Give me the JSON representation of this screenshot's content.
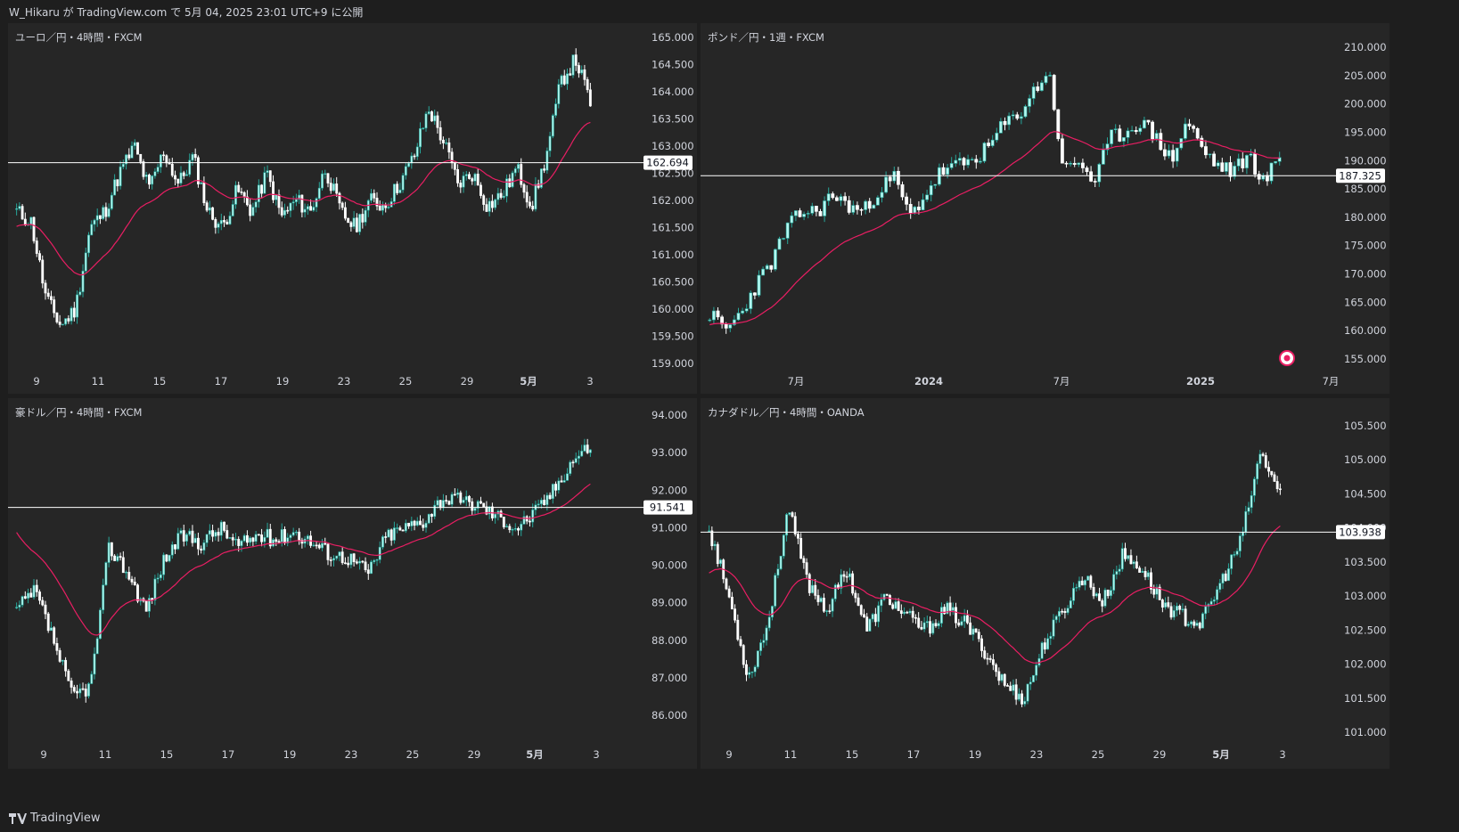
{
  "header": {
    "text": "W_Hikaru が TradingView.com で 5月 04, 2025 23:01 UTC+9 に公開"
  },
  "footer": {
    "brand": "TradingView",
    "logo_icon": "tradingview-logo-icon"
  },
  "colors": {
    "bg": "#1e1e1e",
    "panel": "#262626",
    "up": "#26a69a",
    "down": "#ffffff",
    "up_body": "#b2f7f0",
    "ma": "#e91e63",
    "line": "#ffffff"
  },
  "chart_data": [
    {
      "type": "candlestick",
      "title": "ユーロ／円・4時間・FXCM",
      "ylim": [
        158.75,
        165.25
      ],
      "y_ticks": [
        "165.000",
        "164.500",
        "164.000",
        "163.500",
        "163.000",
        "162.500",
        "162.000",
        "161.500",
        "161.000",
        "160.500",
        "160.000",
        "159.500",
        "159.000"
      ],
      "x_ticks": [
        {
          "t": "9",
          "b": false
        },
        {
          "t": "11",
          "b": false
        },
        {
          "t": "15",
          "b": false
        },
        {
          "t": "17",
          "b": false
        },
        {
          "t": "19",
          "b": false
        },
        {
          "t": "23",
          "b": false
        },
        {
          "t": "25",
          "b": false
        },
        {
          "t": "29",
          "b": false
        },
        {
          "t": "5月",
          "b": true
        },
        {
          "t": "3",
          "b": false
        }
      ],
      "hline": 162.694,
      "hline_label": "162.694",
      "anchors": [
        161.8,
        161.6,
        160.2,
        159.7,
        160.0,
        161.5,
        161.8,
        162.5,
        163.0,
        162.2,
        162.9,
        162.3,
        162.8,
        161.8,
        161.5,
        162.2,
        161.8,
        162.5,
        161.7,
        162.0,
        161.8,
        162.6,
        161.8,
        161.5,
        162.0,
        161.9,
        162.3,
        162.8,
        163.7,
        163.1,
        162.3,
        162.5,
        161.9,
        162.1,
        162.6,
        161.9,
        162.8,
        164.2,
        164.6,
        163.8
      ],
      "n": 200,
      "ma_start": 161.5,
      "seed": 11
    },
    {
      "type": "candlestick",
      "title": "ポンド／円・1週・FXCM",
      "ylim": [
        153.0,
        212.0
      ],
      "y_ticks": [
        "210.000",
        "205.000",
        "200.000",
        "195.000",
        "190.000",
        "185.000",
        "180.000",
        "175.000",
        "170.000",
        "165.000",
        "160.000",
        "155.000"
      ],
      "x_ticks": [
        {
          "t": "7月",
          "b": false
        },
        {
          "t": "2024",
          "b": true
        },
        {
          "t": "7月",
          "b": false
        },
        {
          "t": "2025",
          "b": true
        },
        {
          "t": "7月",
          "b": false
        }
      ],
      "hline": 187.325,
      "hline_label": "187.325",
      "anchors": [
        163,
        160,
        163,
        168,
        172,
        178,
        181,
        181,
        184,
        182,
        181,
        185,
        187,
        180,
        184,
        188,
        189,
        190,
        192,
        196,
        198,
        202,
        206,
        188,
        190,
        186,
        194,
        195,
        197,
        194,
        190,
        197,
        192,
        189,
        188,
        191,
        186,
        191
      ],
      "n": 140,
      "ma_start": 161,
      "seed": 23,
      "marker_icon": "flag-icon"
    },
    {
      "type": "candlestick",
      "title": "豪ドル／円・4時間・FXCM",
      "ylim": [
        85.5,
        94.3
      ],
      "y_ticks": [
        "94.000",
        "93.000",
        "92.000",
        "91.000",
        "90.000",
        "89.000",
        "88.000",
        "87.000",
        "86.000"
      ],
      "x_ticks": [
        {
          "t": "9",
          "b": false
        },
        {
          "t": "11",
          "b": false
        },
        {
          "t": "15",
          "b": false
        },
        {
          "t": "17",
          "b": false
        },
        {
          "t": "19",
          "b": false
        },
        {
          "t": "23",
          "b": false
        },
        {
          "t": "25",
          "b": false
        },
        {
          "t": "29",
          "b": false
        },
        {
          "t": "5月",
          "b": true
        },
        {
          "t": "3",
          "b": false
        }
      ],
      "hline": 91.541,
      "hline_label": "91.541",
      "anchors": [
        88.8,
        89.3,
        88.0,
        86.5,
        86.8,
        90.5,
        89.8,
        88.8,
        90.2,
        90.8,
        90.6,
        91.0,
        90.5,
        90.8,
        90.7,
        90.9,
        90.6,
        90.3,
        90.2,
        89.8,
        90.8,
        91.0,
        91.2,
        91.8,
        91.7,
        91.6,
        91.3,
        91.0,
        91.4,
        92.0,
        92.8,
        93.2
      ],
      "n": 200,
      "ma_start": 91.0,
      "seed": 37
    },
    {
      "type": "candlestick",
      "title": "カナダドル／円・4時間・OANDA",
      "ylim": [
        100.9,
        105.7
      ],
      "y_ticks": [
        "105.500",
        "105.000",
        "104.500",
        "104.000",
        "103.500",
        "103.000",
        "102.500",
        "102.000",
        "101.500",
        "101.000"
      ],
      "x_ticks": [
        {
          "t": "9",
          "b": false
        },
        {
          "t": "11",
          "b": false
        },
        {
          "t": "15",
          "b": false
        },
        {
          "t": "17",
          "b": false
        },
        {
          "t": "19",
          "b": false
        },
        {
          "t": "23",
          "b": false
        },
        {
          "t": "25",
          "b": false
        },
        {
          "t": "29",
          "b": false
        },
        {
          "t": "5月",
          "b": true
        },
        {
          "t": "3",
          "b": false
        }
      ],
      "hline": 103.938,
      "hline_label": "103.938",
      "anchors": [
        104.0,
        103.0,
        101.8,
        102.6,
        104.3,
        103.2,
        102.8,
        103.4,
        102.5,
        103.0,
        102.7,
        102.5,
        102.8,
        102.6,
        102.2,
        101.7,
        101.5,
        102.3,
        102.8,
        103.3,
        102.9,
        103.6,
        103.4,
        102.9,
        102.7,
        102.6,
        103.2,
        103.8,
        105.1,
        104.5
      ],
      "n": 200,
      "ma_start": 103.3,
      "seed": 53
    }
  ]
}
